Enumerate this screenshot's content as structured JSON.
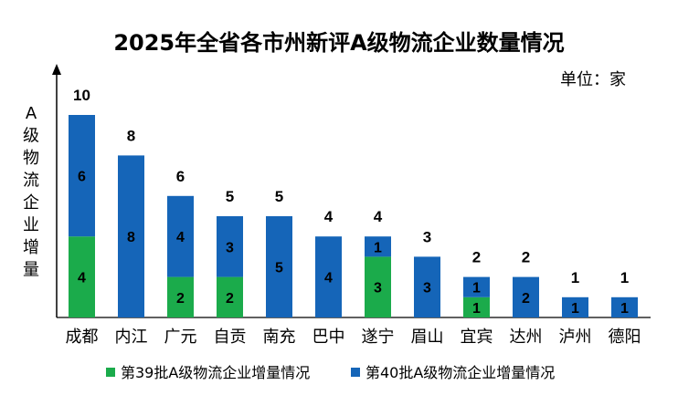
{
  "chart_data": {
    "type": "bar",
    "stacked": true,
    "title": "2025年全省各市州新评A级物流企业数量情况",
    "unit_label": "单位：家",
    "ylabel": "A级物流企业增量",
    "categories": [
      "成都",
      "内江",
      "广元",
      "自贡",
      "南充",
      "巴中",
      "遂宁",
      "眉山",
      "宜宾",
      "达州",
      "泸州",
      "德阳"
    ],
    "series": [
      {
        "name": "第39批A级物流企业增量情况",
        "color": "#1bab4b",
        "values": [
          4,
          0,
          2,
          2,
          0,
          0,
          3,
          0,
          1,
          0,
          0,
          0
        ]
      },
      {
        "name": "第40批A级物流企业增量情况",
        "color": "#1565b8",
        "values": [
          6,
          8,
          4,
          3,
          5,
          4,
          1,
          3,
          1,
          2,
          1,
          1
        ]
      }
    ],
    "totals": [
      10,
      8,
      6,
      5,
      5,
      4,
      4,
      3,
      2,
      2,
      1,
      1
    ],
    "ylim": [
      0,
      10.5
    ],
    "grid": false,
    "legend_position": "bottom"
  }
}
